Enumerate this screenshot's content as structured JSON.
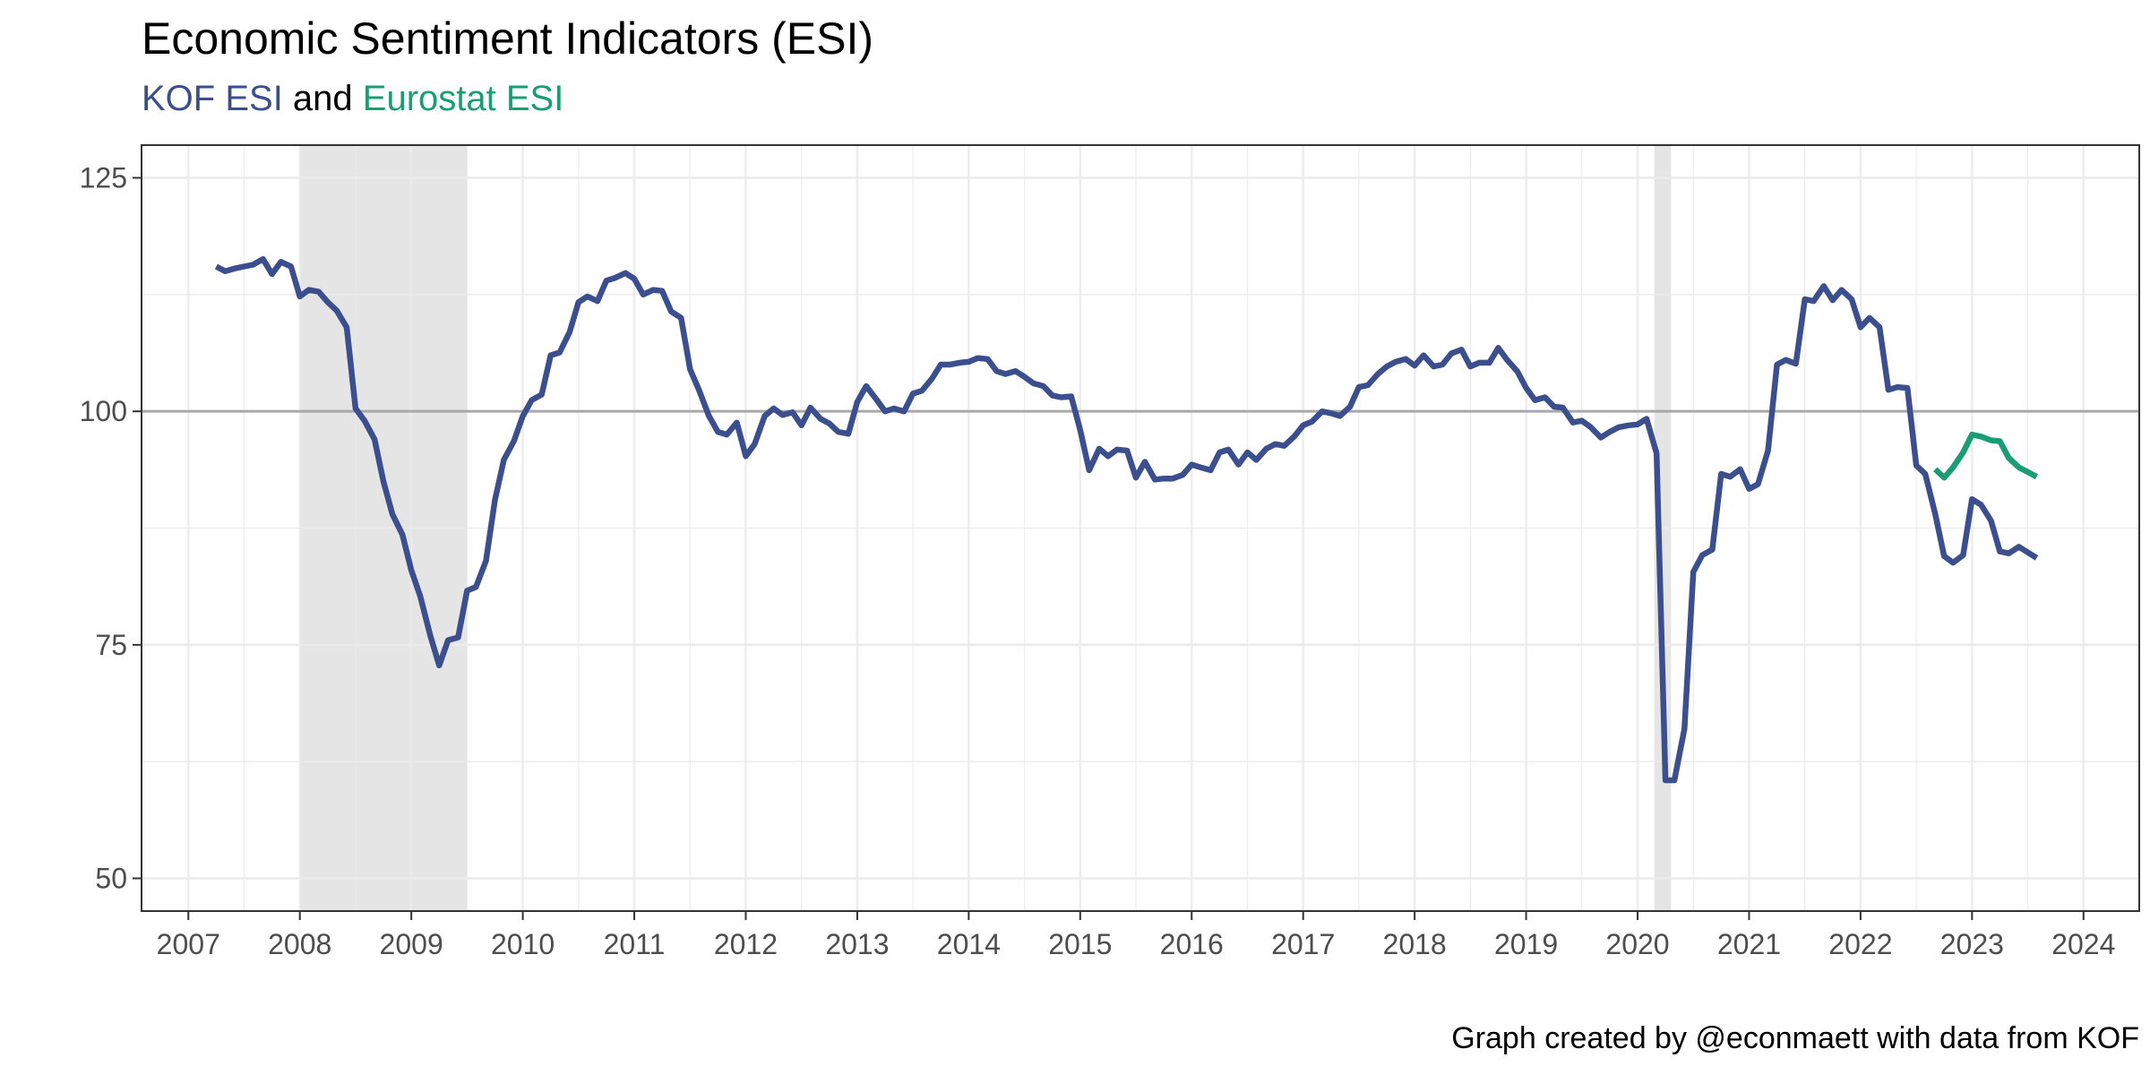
{
  "colors": {
    "kof": "#3B4F8F",
    "eurostat": "#1A9D72",
    "recession": "#E5E5E5",
    "reference_line": "#A9A9A9"
  },
  "chart_data": {
    "type": "line",
    "title": "Economic Sentiment Indicators (ESI)",
    "subtitle": {
      "part1": "KOF ESI",
      "part2": " and ",
      "part3": "Eurostat ESI"
    },
    "caption": "Graph created by @econmaett with data from KOF",
    "xlabel": "",
    "ylabel": "",
    "xlim": [
      2006.58,
      2024.5
    ],
    "ylim": [
      46.5,
      128.5
    ],
    "x_ticks": [
      2007,
      2008,
      2009,
      2010,
      2011,
      2012,
      2013,
      2014,
      2015,
      2016,
      2017,
      2018,
      2019,
      2020,
      2021,
      2022,
      2023,
      2024
    ],
    "y_ticks": [
      50,
      75,
      100,
      125
    ],
    "reference_line": 100,
    "grid": true,
    "recessions": [
      [
        2008.0,
        2009.5
      ],
      [
        2020.15,
        2020.3
      ]
    ],
    "series": [
      {
        "name": "KOF ESI",
        "color": "#3B4F8F",
        "points": [
          [
            2007.25,
            115.5
          ],
          [
            2007.33,
            115
          ],
          [
            2007.42,
            115.3
          ],
          [
            2007.5,
            115.5
          ],
          [
            2007.58,
            115.7
          ],
          [
            2007.67,
            116.3
          ],
          [
            2007.75,
            114.7
          ],
          [
            2007.83,
            116
          ],
          [
            2007.92,
            115.5
          ],
          [
            2008.0,
            112.3
          ],
          [
            2008.08,
            113
          ],
          [
            2008.17,
            112.8
          ],
          [
            2008.25,
            111.7
          ],
          [
            2008.33,
            110.8
          ],
          [
            2008.42,
            109
          ],
          [
            2008.5,
            100.3
          ],
          [
            2008.58,
            99
          ],
          [
            2008.67,
            97
          ],
          [
            2008.75,
            92.5
          ],
          [
            2008.83,
            89
          ],
          [
            2008.92,
            86.8
          ],
          [
            2009.0,
            83
          ],
          [
            2009.08,
            80.2
          ],
          [
            2009.17,
            76
          ],
          [
            2009.25,
            72.8
          ],
          [
            2009.33,
            75.5
          ],
          [
            2009.42,
            75.8
          ],
          [
            2009.5,
            80.8
          ],
          [
            2009.58,
            81.2
          ],
          [
            2009.67,
            84
          ],
          [
            2009.75,
            90.5
          ],
          [
            2009.83,
            94.8
          ],
          [
            2009.92,
            96.8
          ],
          [
            2010.0,
            99.5
          ],
          [
            2010.08,
            101.2
          ],
          [
            2010.17,
            101.8
          ],
          [
            2010.25,
            106
          ],
          [
            2010.33,
            106.3
          ],
          [
            2010.42,
            108.5
          ],
          [
            2010.5,
            111.7
          ],
          [
            2010.58,
            112.3
          ],
          [
            2010.67,
            111.8
          ],
          [
            2010.75,
            114
          ],
          [
            2010.83,
            114.3
          ],
          [
            2010.92,
            114.8
          ],
          [
            2011.0,
            114.2
          ],
          [
            2011.08,
            112.5
          ],
          [
            2011.17,
            113
          ],
          [
            2011.25,
            112.9
          ],
          [
            2011.33,
            110.7
          ],
          [
            2011.42,
            110
          ],
          [
            2011.5,
            104.5
          ],
          [
            2011.58,
            102.3
          ],
          [
            2011.67,
            99.5
          ],
          [
            2011.75,
            97.8
          ],
          [
            2011.83,
            97.5
          ],
          [
            2011.92,
            98.8
          ],
          [
            2012.0,
            95.2
          ],
          [
            2012.08,
            96.5
          ],
          [
            2012.17,
            99.5
          ],
          [
            2012.25,
            100.3
          ],
          [
            2012.33,
            99.6
          ],
          [
            2012.42,
            99.9
          ],
          [
            2012.5,
            98.5
          ],
          [
            2012.58,
            100.4
          ],
          [
            2012.67,
            99.2
          ],
          [
            2012.75,
            98.7
          ],
          [
            2012.83,
            97.8
          ],
          [
            2012.92,
            97.6
          ],
          [
            2013.0,
            101
          ],
          [
            2013.08,
            102.7
          ],
          [
            2013.17,
            101.3
          ],
          [
            2013.25,
            100
          ],
          [
            2013.33,
            100.3
          ],
          [
            2013.42,
            100
          ],
          [
            2013.5,
            101.9
          ],
          [
            2013.58,
            102.2
          ],
          [
            2013.67,
            103.5
          ],
          [
            2013.75,
            105
          ],
          [
            2013.83,
            105
          ],
          [
            2013.92,
            105.2
          ],
          [
            2014.0,
            105.3
          ],
          [
            2014.08,
            105.7
          ],
          [
            2014.17,
            105.6
          ],
          [
            2014.25,
            104.3
          ],
          [
            2014.33,
            104
          ],
          [
            2014.42,
            104.3
          ],
          [
            2014.5,
            103.7
          ],
          [
            2014.58,
            103
          ],
          [
            2014.67,
            102.7
          ],
          [
            2014.75,
            101.7
          ],
          [
            2014.83,
            101.5
          ],
          [
            2014.92,
            101.6
          ],
          [
            2015.0,
            98
          ],
          [
            2015.08,
            93.7
          ],
          [
            2015.17,
            96
          ],
          [
            2015.25,
            95.2
          ],
          [
            2015.33,
            95.9
          ],
          [
            2015.42,
            95.8
          ],
          [
            2015.5,
            92.9
          ],
          [
            2015.58,
            94.6
          ],
          [
            2015.67,
            92.7
          ],
          [
            2015.75,
            92.8
          ],
          [
            2015.83,
            92.8
          ],
          [
            2015.92,
            93.2
          ],
          [
            2016.0,
            94.3
          ],
          [
            2016.08,
            94
          ],
          [
            2016.17,
            93.7
          ],
          [
            2016.25,
            95.6
          ],
          [
            2016.33,
            95.9
          ],
          [
            2016.42,
            94.3
          ],
          [
            2016.5,
            95.6
          ],
          [
            2016.58,
            94.8
          ],
          [
            2016.67,
            96
          ],
          [
            2016.75,
            96.5
          ],
          [
            2016.83,
            96.3
          ],
          [
            2016.92,
            97.3
          ],
          [
            2017.0,
            98.5
          ],
          [
            2017.08,
            98.9
          ],
          [
            2017.17,
            100
          ],
          [
            2017.25,
            99.8
          ],
          [
            2017.33,
            99.5
          ],
          [
            2017.42,
            100.5
          ],
          [
            2017.5,
            102.6
          ],
          [
            2017.58,
            102.8
          ],
          [
            2017.67,
            104
          ],
          [
            2017.75,
            104.8
          ],
          [
            2017.83,
            105.3
          ],
          [
            2017.92,
            105.6
          ],
          [
            2018.0,
            104.9
          ],
          [
            2018.08,
            106
          ],
          [
            2018.17,
            104.8
          ],
          [
            2018.25,
            105
          ],
          [
            2018.33,
            106.2
          ],
          [
            2018.42,
            106.6
          ],
          [
            2018.5,
            104.8
          ],
          [
            2018.58,
            105.2
          ],
          [
            2018.67,
            105.2
          ],
          [
            2018.75,
            106.8
          ],
          [
            2018.83,
            105.5
          ],
          [
            2018.92,
            104.3
          ],
          [
            2019.0,
            102.5
          ],
          [
            2019.08,
            101.2
          ],
          [
            2019.17,
            101.5
          ],
          [
            2019.25,
            100.5
          ],
          [
            2019.33,
            100.4
          ],
          [
            2019.42,
            98.8
          ],
          [
            2019.5,
            99
          ],
          [
            2019.58,
            98.3
          ],
          [
            2019.67,
            97.2
          ],
          [
            2019.75,
            97.8
          ],
          [
            2019.83,
            98.3
          ],
          [
            2019.92,
            98.5
          ],
          [
            2020.0,
            98.6
          ],
          [
            2020.08,
            99.2
          ],
          [
            2020.17,
            95.5
          ],
          [
            2020.25,
            60.5
          ],
          [
            2020.33,
            60.5
          ],
          [
            2020.42,
            66
          ],
          [
            2020.5,
            82.8
          ],
          [
            2020.58,
            84.6
          ],
          [
            2020.67,
            85.2
          ],
          [
            2020.75,
            93.3
          ],
          [
            2020.83,
            93
          ],
          [
            2020.92,
            93.8
          ],
          [
            2021.0,
            91.7
          ],
          [
            2021.08,
            92.2
          ],
          [
            2021.17,
            95.8
          ],
          [
            2021.25,
            105
          ],
          [
            2021.33,
            105.5
          ],
          [
            2021.42,
            105.1
          ],
          [
            2021.5,
            112
          ],
          [
            2021.58,
            111.8
          ],
          [
            2021.67,
            113.4
          ],
          [
            2021.75,
            111.9
          ],
          [
            2021.83,
            113
          ],
          [
            2021.92,
            112
          ],
          [
            2022.0,
            109
          ],
          [
            2022.08,
            110
          ],
          [
            2022.17,
            109
          ],
          [
            2022.25,
            102.3
          ],
          [
            2022.33,
            102.6
          ],
          [
            2022.42,
            102.5
          ],
          [
            2022.5,
            94.2
          ],
          [
            2022.58,
            93.3
          ],
          [
            2022.67,
            89
          ],
          [
            2022.75,
            84.5
          ],
          [
            2022.83,
            83.8
          ],
          [
            2022.92,
            84.6
          ],
          [
            2023.0,
            90.6
          ],
          [
            2023.08,
            90
          ],
          [
            2023.17,
            88.3
          ],
          [
            2023.25,
            85
          ],
          [
            2023.33,
            84.8
          ],
          [
            2023.42,
            85.5
          ],
          [
            2023.5,
            84.9
          ],
          [
            2023.58,
            84.3
          ]
        ]
      },
      {
        "name": "Eurostat ESI",
        "color": "#1A9D72",
        "points": [
          [
            2022.67,
            93.8
          ],
          [
            2022.75,
            92.9
          ],
          [
            2022.83,
            94
          ],
          [
            2022.92,
            95.6
          ],
          [
            2023.0,
            97.5
          ],
          [
            2023.08,
            97.3
          ],
          [
            2023.17,
            96.9
          ],
          [
            2023.25,
            96.8
          ],
          [
            2023.33,
            95
          ],
          [
            2023.42,
            94
          ],
          [
            2023.5,
            93.5
          ],
          [
            2023.58,
            93
          ]
        ]
      }
    ]
  }
}
